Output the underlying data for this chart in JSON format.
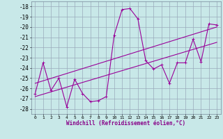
{
  "xlabel": "Windchill (Refroidissement éolien,°C)",
  "bg_color": "#c8e8e8",
  "grid_color": "#99aabb",
  "line_color": "#990099",
  "x_data": [
    0,
    1,
    2,
    3,
    4,
    5,
    6,
    7,
    8,
    9,
    10,
    11,
    12,
    13,
    14,
    15,
    16,
    17,
    18,
    19,
    20,
    21,
    22,
    23
  ],
  "y_main": [
    -26.5,
    -23.5,
    -26.2,
    -25.0,
    -27.8,
    -25.1,
    -26.5,
    -27.3,
    -27.2,
    -26.8,
    -20.8,
    -18.3,
    -18.2,
    -19.2,
    -23.3,
    -24.1,
    -23.7,
    -25.5,
    -23.5,
    -23.5,
    -21.2,
    -23.4,
    -19.7,
    -19.8
  ],
  "trend1_x": [
    0,
    23
  ],
  "trend1_y": [
    -26.8,
    -21.5
  ],
  "trend2_x": [
    0,
    23
  ],
  "trend2_y": [
    -25.5,
    -20.0
  ],
  "ylim": [
    -28.5,
    -17.5
  ],
  "xlim": [
    -0.5,
    23.5
  ],
  "yticks": [
    -28,
    -27,
    -26,
    -25,
    -24,
    -23,
    -22,
    -21,
    -20,
    -19,
    -18
  ],
  "xticks": [
    0,
    1,
    2,
    3,
    4,
    5,
    6,
    7,
    8,
    9,
    10,
    11,
    12,
    13,
    14,
    15,
    16,
    17,
    18,
    19,
    20,
    21,
    22,
    23
  ]
}
